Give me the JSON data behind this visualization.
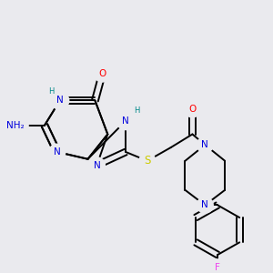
{
  "background_color": "#eaeaee",
  "atom_colors": {
    "N": "#0000dd",
    "O": "#ff0000",
    "S": "#cccc00",
    "F": "#ee44ee",
    "C": "#000000",
    "H": "#008888"
  },
  "bond_lw": 1.4,
  "label_fs": 7.5
}
